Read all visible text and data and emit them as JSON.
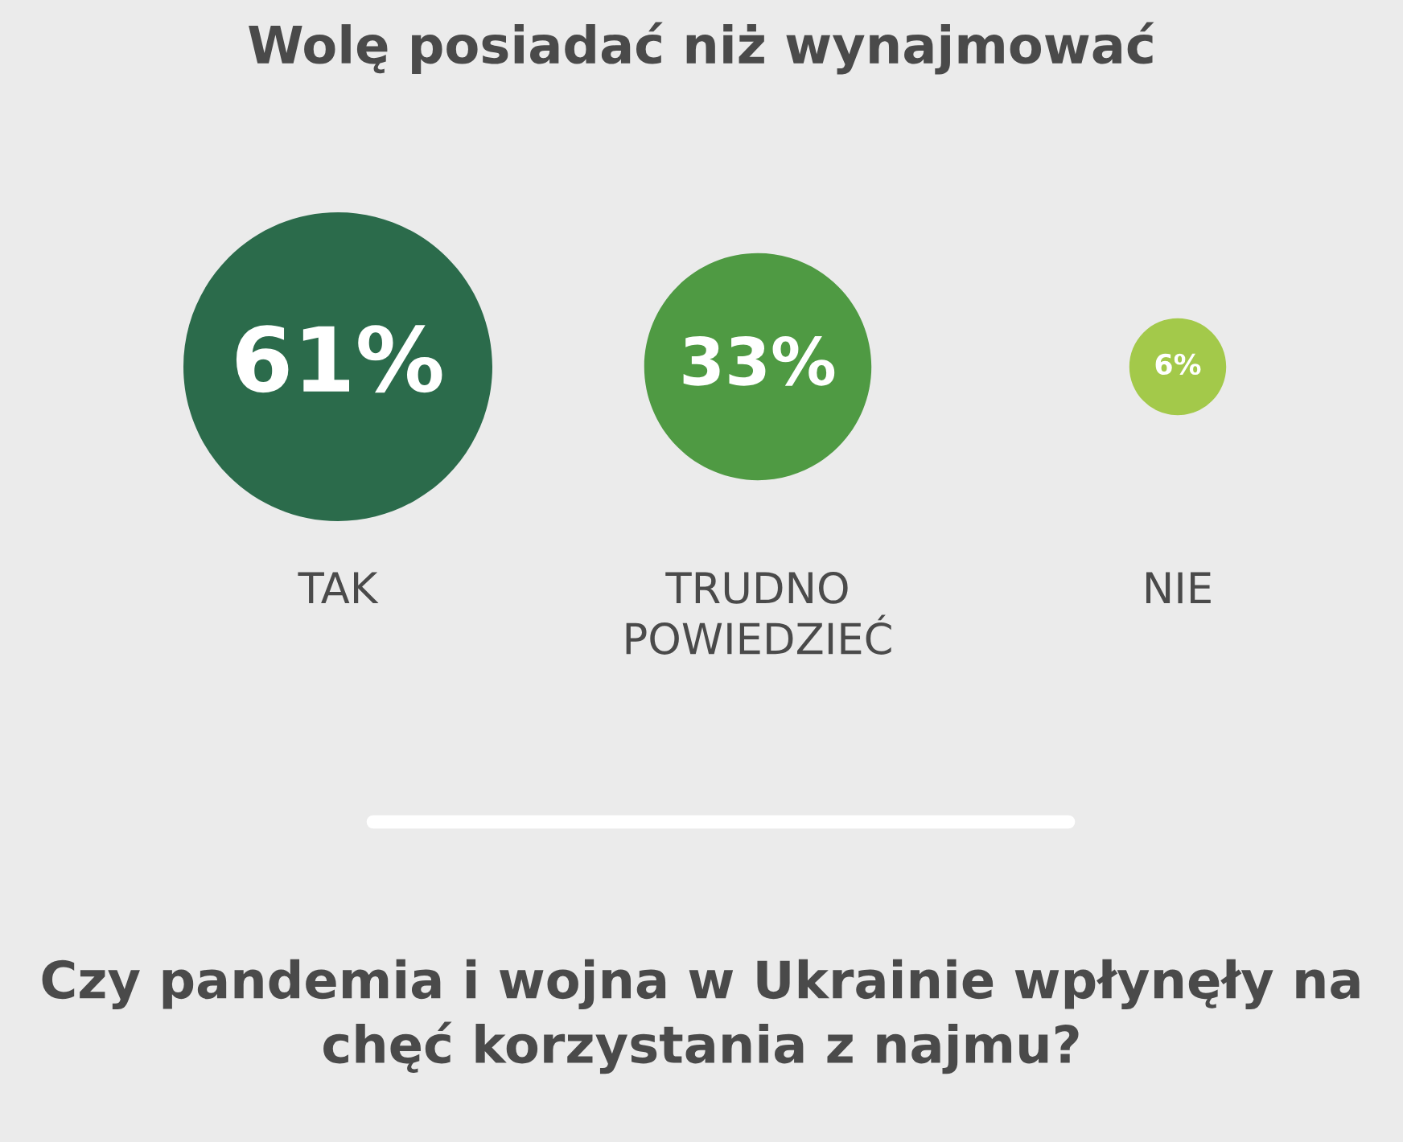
{
  "chart_data": {
    "type": "other",
    "title": "Wolę posiadać niż wynajmować",
    "categories": [
      "TAK",
      "TRUDNO POWIEDZIEĆ",
      "NIE"
    ],
    "values": [
      61,
      33,
      6
    ],
    "value_labels": [
      "61%",
      "33%",
      "6%"
    ],
    "colors": [
      "#2b6b4b",
      "#4f9a43",
      "#a3c94a"
    ],
    "annotations": [
      "Czy pandemia i wojna w Ukrainie wpłynęły na chęć korzystania z najmu?"
    ]
  }
}
